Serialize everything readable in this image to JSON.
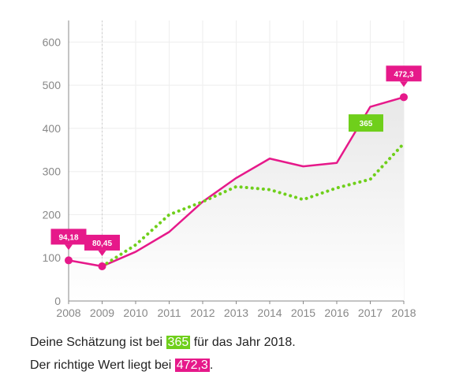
{
  "colors": {
    "actual": "#e6198a",
    "guess": "#6fcf1b",
    "grid": "#eeeeee",
    "axis": "#888888"
  },
  "chart_data": {
    "type": "line",
    "x": [
      2008,
      2009,
      2010,
      2011,
      2012,
      2013,
      2014,
      2015,
      2016,
      2017,
      2018
    ],
    "ylim": [
      0,
      650
    ],
    "yticks": [
      0,
      100,
      200,
      300,
      400,
      500,
      600
    ],
    "xlabel": "",
    "ylabel": "",
    "title": "",
    "grid": true,
    "series": [
      {
        "key": "actual",
        "style": "solid",
        "values": [
          94.18,
          80.45,
          114,
          160,
          230,
          285,
          330,
          312,
          320,
          450,
          472.3
        ]
      },
      {
        "key": "guess",
        "style": "dotted",
        "starts_at": 2009,
        "values": [
          null,
          80.45,
          130,
          200,
          230,
          265,
          258,
          235,
          262,
          282,
          365
        ]
      }
    ],
    "annotations": [
      {
        "x": 2008,
        "y": 94.18,
        "label": "94,18",
        "series": "actual"
      },
      {
        "x": 2009,
        "y": 80.45,
        "label": "80,45",
        "series": "actual"
      },
      {
        "x": 2018,
        "y": 472.3,
        "label": "472,3",
        "series": "actual"
      },
      {
        "x": 2018,
        "y": 365,
        "label": "365",
        "series": "guess"
      }
    ]
  },
  "summary": {
    "line1_prefix": "Deine Schätzung ist bei ",
    "line1_value": "365",
    "line1_suffix": " für das Jahr 2018.",
    "line2_prefix": "Der richtige Wert liegt bei ",
    "line2_value": "472,3",
    "line2_suffix": "."
  }
}
